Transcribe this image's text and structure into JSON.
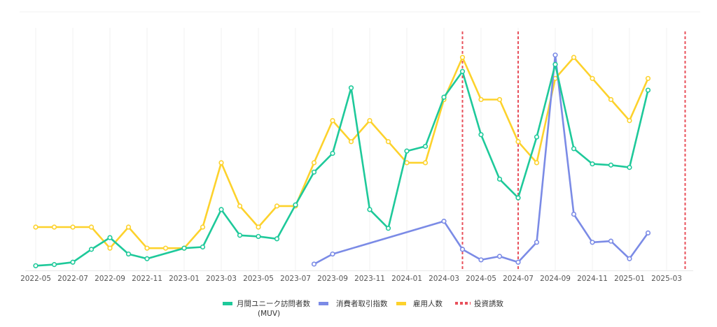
{
  "chart_data": {
    "type": "line",
    "x_ticks": [
      "2022-05",
      "2022-07",
      "2022-09",
      "2022-11",
      "2023-01",
      "2023-03",
      "2023-05",
      "2023-07",
      "2023-09",
      "2023-11",
      "2024-01",
      "2024-03",
      "2024-05",
      "2024-07",
      "2024-09",
      "2024-11",
      "2025-01",
      "2025-03"
    ],
    "y_range": [
      0,
      100
    ],
    "grid": "vertical",
    "legend_position": "bottom",
    "series": [
      {
        "key": "muv",
        "name": "月間ユニーク訪問者数",
        "name_line2": "(MUV)",
        "color": "#1ec99a",
        "style": "solid",
        "points": [
          [
            "2022-05",
            2
          ],
          [
            "2022-06",
            2.5
          ],
          [
            "2022-07",
            3.5
          ],
          [
            "2022-08",
            9
          ],
          [
            "2022-09",
            14
          ],
          [
            "2022-10",
            7
          ],
          [
            "2022-11",
            5
          ],
          [
            "2023-01",
            9.5
          ],
          [
            "2023-02",
            10
          ],
          [
            "2023-03",
            26
          ],
          [
            "2023-04",
            15
          ],
          [
            "2023-05",
            14.5
          ],
          [
            "2023-06",
            13.5
          ],
          [
            "2023-07",
            28
          ],
          [
            "2023-08",
            42
          ],
          [
            "2023-09",
            50
          ],
          [
            "2023-10",
            78
          ],
          [
            "2023-11",
            26
          ],
          [
            "2023-12",
            18
          ],
          [
            "2024-01",
            51
          ],
          [
            "2024-02",
            53
          ],
          [
            "2024-03",
            74
          ],
          [
            "2024-04",
            85
          ],
          [
            "2024-05",
            58
          ],
          [
            "2024-06",
            39
          ],
          [
            "2024-07",
            31
          ],
          [
            "2024-08",
            57
          ],
          [
            "2024-09",
            88
          ],
          [
            "2024-10",
            52
          ],
          [
            "2024-11",
            45.5
          ],
          [
            "2024-12",
            45
          ],
          [
            "2025-01",
            44
          ],
          [
            "2025-02",
            77
          ]
        ]
      },
      {
        "key": "consumer",
        "name": "消費者取引指数",
        "color": "#7b8be6",
        "style": "solid",
        "points": [
          [
            "2023-08",
            2.7
          ],
          [
            "2023-09",
            7
          ],
          [
            "2024-03",
            21
          ],
          [
            "2024-04",
            9
          ],
          [
            "2024-05",
            4.5
          ],
          [
            "2024-06",
            6
          ],
          [
            "2024-07",
            3.5
          ],
          [
            "2024-08",
            12
          ],
          [
            "2024-09",
            92
          ],
          [
            "2024-10",
            24
          ],
          [
            "2024-11",
            12
          ],
          [
            "2024-12",
            12.5
          ],
          [
            "2025-01",
            5
          ],
          [
            "2025-02",
            16
          ]
        ]
      },
      {
        "key": "employees",
        "name": "雇用人数",
        "color": "#fdd22c",
        "style": "solid",
        "points": [
          [
            "2022-05",
            18.5
          ],
          [
            "2022-06",
            18.5
          ],
          [
            "2022-07",
            18.5
          ],
          [
            "2022-08",
            18.5
          ],
          [
            "2022-09",
            9.5
          ],
          [
            "2022-10",
            18.5
          ],
          [
            "2022-11",
            9.5
          ],
          [
            "2022-12",
            9.5
          ],
          [
            "2023-01",
            9.5
          ],
          [
            "2023-02",
            18.5
          ],
          [
            "2023-03",
            46
          ],
          [
            "2023-04",
            27.5
          ],
          [
            "2023-05",
            18.5
          ],
          [
            "2023-06",
            27.5
          ],
          [
            "2023-07",
            27.5
          ],
          [
            "2023-08",
            46
          ],
          [
            "2023-09",
            64
          ],
          [
            "2023-10",
            55
          ],
          [
            "2023-11",
            64
          ],
          [
            "2023-12",
            55
          ],
          [
            "2024-01",
            46
          ],
          [
            "2024-02",
            46
          ],
          [
            "2024-03",
            73
          ],
          [
            "2024-04",
            91
          ],
          [
            "2024-05",
            73
          ],
          [
            "2024-06",
            73
          ],
          [
            "2024-07",
            55
          ],
          [
            "2024-08",
            46
          ],
          [
            "2024-09",
            82
          ],
          [
            "2024-10",
            91
          ],
          [
            "2024-11",
            82
          ],
          [
            "2024-12",
            73
          ],
          [
            "2025-01",
            64
          ],
          [
            "2025-02",
            82
          ]
        ]
      },
      {
        "key": "investment",
        "name": "投資誘致",
        "color": "#e8505b",
        "style": "dashed",
        "events": [
          "2024-04",
          "2024-07",
          "2025-04"
        ]
      }
    ]
  }
}
